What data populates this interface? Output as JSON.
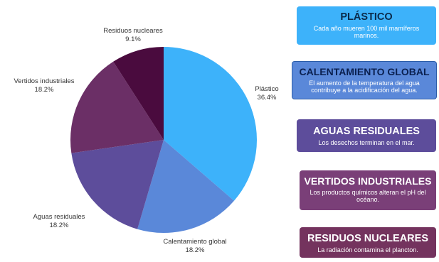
{
  "chart_data": {
    "type": "pie",
    "title": "",
    "legend": "none",
    "categories": [
      "Plástico",
      "Calentamiento global",
      "Aguas residuales",
      "Vertidos industriales",
      "Residuos nucleares"
    ],
    "values": [
      36.4,
      18.2,
      18.2,
      18.2,
      9.1
    ],
    "value_labels": [
      "36.4%",
      "18.2%",
      "18.2%",
      "18.2%",
      "9.1%"
    ],
    "colors": [
      "#3db2fa",
      "#5a88d9",
      "#5d4d9b",
      "#6b2f66",
      "#4a0b3e"
    ]
  },
  "cards": [
    {
      "title": "PLÁSTICO",
      "text": "Cada año mueren 100 mil mamíferos marinos.",
      "color": "#3db2fa",
      "border": "#3db2fa",
      "title_color": "#0a2a4a"
    },
    {
      "title": "CALENTAMIENTO GLOBAL",
      "text": "El aumento de la temperatura del agua contribuye a la acidificación del agua.",
      "color": "#5a88d9",
      "border": "#2c5da8",
      "title_color": "#0a2050"
    },
    {
      "title": "AGUAS RESIDUALES",
      "text": "Los desechos terminan en el mar.",
      "color": "#5d4d9b",
      "border": "#5d4d9b",
      "title_color": "#ffffff"
    },
    {
      "title": "VERTIDOS INDUSTRIALES",
      "text": "Los productos químicos alteran el pH del océano.",
      "color": "#7a3f78",
      "border": "#7a3f78",
      "title_color": "#ffffff"
    },
    {
      "title": "RESIDUOS NUCLEARES",
      "text": "La radiación contamina el plancton.",
      "color": "#74335e",
      "border": "#74335e",
      "title_color": "#ffffff"
    }
  ]
}
